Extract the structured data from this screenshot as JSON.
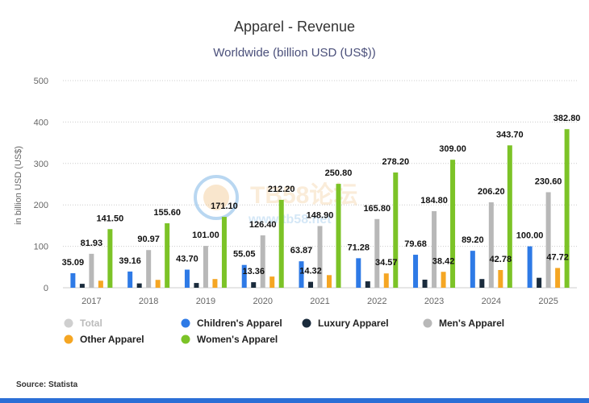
{
  "chart_data": {
    "type": "bar",
    "title": "Apparel - Revenue",
    "subtitle": "Worldwide (billion USD (US$))",
    "ylabel": "in billion USD (US$)",
    "xlabel": "",
    "ylim": [
      0,
      500
    ],
    "yticks": [
      0,
      100,
      200,
      300,
      400,
      500
    ],
    "grid": true,
    "legend_position": "bottom",
    "categories": [
      "2017",
      "2018",
      "2019",
      "2020",
      "2021",
      "2022",
      "2023",
      "2024",
      "2025"
    ],
    "series": [
      {
        "name": "Children's Apparel",
        "color": "#2e7ae6",
        "values": [
          35.09,
          39.16,
          43.7,
          55.05,
          63.87,
          71.28,
          79.68,
          89.2,
          100.0
        ],
        "labels": [
          "35.09",
          "39.16",
          "43.70",
          "55.05",
          "63.87",
          "71.28",
          "79.68",
          "89.20",
          "100.00"
        ]
      },
      {
        "name": "Luxury Apparel",
        "color": "#1a2b3c",
        "values": [
          9.5,
          10.5,
          11.5,
          13.36,
          14.32,
          15.5,
          19.5,
          21.0,
          24.0
        ],
        "labels": [
          "",
          "",
          "",
          "13.36",
          "14.32",
          "",
          "",
          "",
          ""
        ]
      },
      {
        "name": "Men's Apparel",
        "color": "#b8b8b8",
        "values": [
          81.93,
          90.97,
          101.0,
          126.4,
          148.9,
          165.8,
          184.8,
          206.2,
          230.6
        ],
        "labels": [
          "81.93",
          "90.97",
          "101.00",
          "126.40",
          "148.90",
          "165.80",
          "184.80",
          "206.20",
          "230.60"
        ]
      },
      {
        "name": "Other Apparel",
        "color": "#f5a623",
        "values": [
          17.0,
          19.0,
          21.0,
          27.0,
          30.5,
          34.57,
          38.42,
          42.78,
          47.72
        ],
        "labels": [
          "",
          "",
          "",
          "",
          "",
          "34.57",
          "38.42",
          "42.78",
          "47.72"
        ]
      },
      {
        "name": "Women's Apparel",
        "color": "#7cc327",
        "values": [
          141.5,
          155.6,
          171.1,
          212.2,
          250.8,
          278.2,
          309.0,
          343.7,
          382.8
        ],
        "labels": [
          "141.50",
          "155.60",
          "171.10",
          "212.20",
          "250.80",
          "278.20",
          "309.00",
          "343.70",
          "382.80"
        ]
      }
    ],
    "legend": [
      {
        "name": "Total",
        "color": "#cfcfcf",
        "muted": true
      },
      {
        "name": "Children's Apparel",
        "color": "#2e7ae6",
        "muted": false
      },
      {
        "name": "Luxury Apparel",
        "color": "#1a2b3c",
        "muted": false
      },
      {
        "name": "Men's Apparel",
        "color": "#b8b8b8",
        "muted": false
      },
      {
        "name": "Other Apparel",
        "color": "#f5a623",
        "muted": false
      },
      {
        "name": "Women's Apparel",
        "color": "#7cc327",
        "muted": false
      }
    ]
  },
  "source": "Source: Statista",
  "watermark": {
    "text": "TB58论坛",
    "url": "www.tb58.net"
  }
}
